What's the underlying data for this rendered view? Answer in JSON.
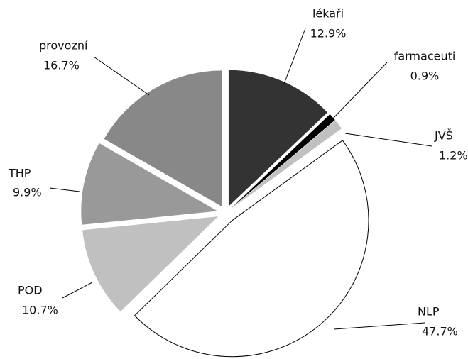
{
  "chart_data": {
    "type": "pie",
    "categories": [
      "lékaři",
      "farmaceuti",
      "JVŠ",
      "NLP",
      "POD",
      "THP",
      "provozní"
    ],
    "values": [
      12.9,
      0.9,
      1.2,
      47.7,
      10.7,
      9.9,
      16.7
    ],
    "value_labels": [
      "12.9%",
      "0.9%",
      "1.2%",
      "47.7%",
      "10.7%",
      "9.9%",
      "16.7%"
    ],
    "colors": [
      "#333333",
      "#000000",
      "#c0c0c0",
      "#ffffff",
      "#c0c0c0",
      "#999999",
      "#888888"
    ]
  }
}
